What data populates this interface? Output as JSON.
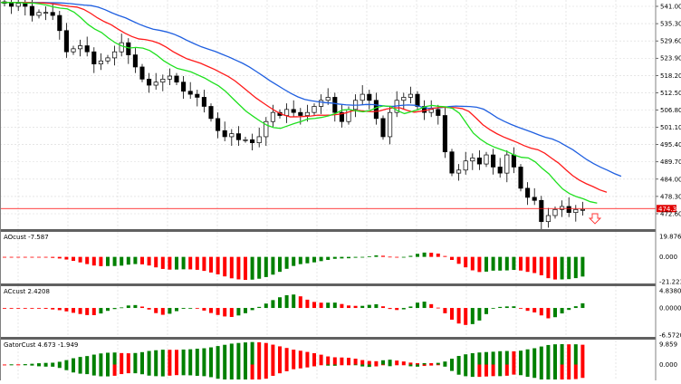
{
  "chart_data": [
    {
      "type": "candlestick",
      "panel": "main",
      "y_ticks": [
        "541.00",
        "535.30",
        "529.60",
        "523.90",
        "518.20",
        "512.50",
        "506.80",
        "501.10",
        "495.40",
        "489.70",
        "484.00",
        "478.30",
        "472.60"
      ],
      "ylim": [
        470.0,
        543.0
      ],
      "current_price": "474.31",
      "grid": true,
      "closes": [
        542,
        541,
        542,
        541,
        538,
        539,
        539,
        538,
        533,
        526,
        527,
        528,
        526,
        522,
        523,
        524,
        526,
        529,
        525,
        521,
        517,
        515,
        516,
        517,
        518,
        516,
        513,
        512,
        511,
        508,
        504,
        500,
        498,
        499,
        497,
        497,
        496,
        498,
        503,
        506,
        505,
        507,
        506,
        505,
        506,
        508,
        510,
        511,
        506,
        503,
        507,
        510,
        512,
        510,
        504,
        498,
        506,
        510,
        511,
        512,
        508,
        506,
        507,
        505,
        493,
        486,
        487,
        490,
        491,
        489,
        492,
        488,
        486,
        492,
        488,
        481,
        478,
        477,
        470,
        472,
        474,
        475,
        473,
        474,
        474
      ],
      "overlays": [
        {
          "indicator": "jaw",
          "color": "#1f5fe0"
        },
        {
          "indicator": "teeth",
          "color": "#ff1a1a"
        },
        {
          "indicator": "lips",
          "color": "#1ee01e"
        }
      ],
      "signal": "sell-arrow"
    },
    {
      "type": "histogram",
      "panel": "ao",
      "label": "AOcust -7.587",
      "y_ticks": [
        "19.876",
        "0.000",
        "-21.223"
      ],
      "ylim": [
        -21.223,
        19.876
      ]
    },
    {
      "type": "histogram",
      "panel": "ac",
      "label": "ACcust 2.4208",
      "y_ticks": [
        "4.8380",
        "0.0000",
        "-6.5720"
      ],
      "ylim": [
        -6.572,
        4.838
      ]
    },
    {
      "type": "histogram",
      "panel": "gator",
      "label": "GatorCust 4.673 -1.949",
      "y_ticks": [
        "9.859",
        "0.000"
      ],
      "ylim": [
        -6.0,
        9.859
      ]
    }
  ],
  "colors": {
    "up": "#008000",
    "down": "#ff0000",
    "price_line": "#ff0000",
    "separator": "#606060"
  }
}
